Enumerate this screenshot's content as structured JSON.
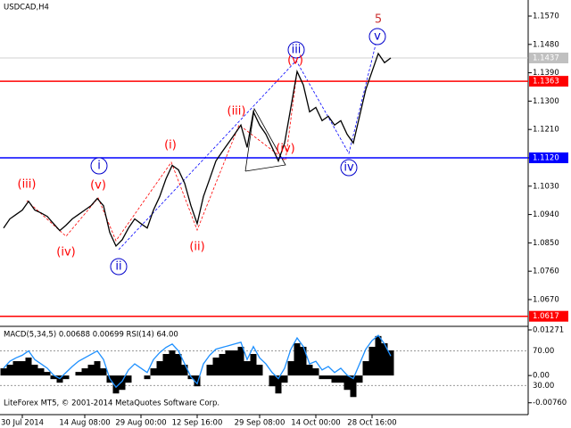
{
  "chart_data": [
    {
      "type": "line",
      "title": "USDCAD,H4",
      "footer": "LiteForex MT5, © 2001-2014 MetaQuotes Software Corp.",
      "categories": [
        null,
        null,
        null,
        "30 Jul 2014",
        null,
        null,
        null,
        null,
        null,
        null,
        null,
        null,
        null,
        "14 Aug 08:00",
        null,
        null,
        null,
        null,
        null,
        null,
        null,
        null,
        "29 Aug 00:00",
        null,
        null,
        null,
        null,
        null,
        null,
        null,
        null,
        "12 Sep 16:00",
        null,
        null,
        null,
        null,
        null,
        null,
        null,
        null,
        null,
        "29 Sep 08:00",
        null,
        null,
        null,
        null,
        null,
        null,
        null,
        null,
        "14 Oct 00:00",
        null,
        null,
        null,
        null,
        null,
        null,
        null,
        null,
        "28 Oct 16:00",
        null,
        null,
        null
      ],
      "series": [
        {
          "color": "#000000",
          "values": [
            1.0897,
            1.0926,
            1.094,
            1.0954,
            1.0982,
            1.0954,
            1.0945,
            1.0934,
            1.0911,
            1.0889,
            1.0906,
            1.0926,
            1.094,
            1.0954,
            1.0968,
            1.0991,
            1.0968,
            1.0883,
            1.084,
            1.086,
            1.0897,
            1.0926,
            1.0911,
            1.0897,
            1.0954,
            1.0997,
            1.1053,
            1.1096,
            1.1082,
            1.1039,
            1.0968,
            1.0911,
            1.0997,
            1.1053,
            1.111,
            1.1139,
            1.1167,
            1.1195,
            1.1224,
            1.1153,
            1.1266,
            1.1224,
            1.1195,
            1.1153,
            1.111,
            1.1167,
            1.128,
            1.1394,
            1.1351,
            1.1266,
            1.128,
            1.1238,
            1.1252,
            1.1224,
            1.1238,
            1.1195,
            1.1167,
            1.1252,
            1.1337,
            1.1394,
            1.1451,
            1.1422,
            1.1437
          ]
        }
      ],
      "ylim": [
        1.0585,
        1.1621
      ],
      "yticks": [
        {
          "value": 1.157,
          "label": "1.1570"
        },
        {
          "value": 1.148,
          "label": "1.1480"
        },
        {
          "value": 1.139,
          "label": "1.1390"
        },
        {
          "value": 1.13,
          "label": "1.1300"
        },
        {
          "value": 1.121,
          "label": "1.1210"
        },
        {
          "value": 1.112,
          "label": "1.1120"
        },
        {
          "value": 1.103,
          "label": "1.1030"
        },
        {
          "value": 1.094,
          "label": "1.0940"
        },
        {
          "value": 1.085,
          "label": "1.0850"
        },
        {
          "value": 1.076,
          "label": "1.0760"
        },
        {
          "value": 1.067,
          "label": "1.0670"
        }
      ],
      "levels": [
        {
          "value": 1.1437,
          "color": "#c0c0c0"
        },
        {
          "value": 1.1363,
          "color": "#ff0000"
        },
        {
          "value": 1.112,
          "label": "1.1120",
          "color": "#0000ff"
        },
        {
          "value": 1.0617,
          "color": "#ff0000"
        }
      ],
      "annotations": [
        {
          "text": "5",
          "color": "#cc3333"
        },
        {
          "text": "v",
          "color": "#0000cc"
        },
        {
          "text": "iii",
          "color": "#0000cc"
        },
        {
          "text": "(v)",
          "color": "#ff0000"
        },
        {
          "text": "(iii)",
          "color": "#ff0000"
        },
        {
          "text": "(iv)",
          "color": "#ff0000"
        },
        {
          "text": "iv",
          "color": "#0000cc"
        },
        {
          "text": "(i)",
          "color": "#ff0000"
        },
        {
          "text": "i",
          "color": "#0000cc"
        },
        {
          "text": "(v)",
          "color": "#ff0000"
        },
        {
          "text": "(iii)",
          "color": "#ff0000"
        },
        {
          "text": "(iv)",
          "color": "#ff0000"
        },
        {
          "text": "ii",
          "color": "#0000cc"
        },
        {
          "text": "(ii)",
          "color": "#ff0000"
        }
      ]
    },
    {
      "type": "bar",
      "title": "MACD(5,34,5) 0.00688 0.00699 RSI(14) 64.00",
      "series": [
        {
          "color": "#000000",
          "values": [
            0.002,
            0.003,
            0.004,
            0.004,
            0.005,
            0.003,
            0.002,
            0.001,
            -0.001,
            -0.002,
            -0.001,
            0.0,
            0.001,
            0.002,
            0.003,
            0.004,
            0.002,
            -0.002,
            -0.005,
            -0.004,
            -0.002,
            0.0,
            0.0,
            -0.001,
            0.002,
            0.004,
            0.006,
            0.007,
            0.006,
            0.003,
            -0.001,
            -0.003,
            0.0,
            0.003,
            0.005,
            0.006,
            0.007,
            0.007,
            0.008,
            0.004,
            0.006,
            0.003,
            0.0,
            -0.003,
            -0.005,
            -0.002,
            0.004,
            0.009,
            0.008,
            0.003,
            0.002,
            -0.001,
            -0.001,
            -0.002,
            -0.002,
            -0.004,
            -0.006,
            -0.002,
            0.004,
            0.008,
            0.011,
            0.009,
            0.007
          ]
        },
        {
          "color": "#1e90ff",
          "axis": "y2",
          "values": [
            50,
            58,
            62,
            65,
            70,
            60,
            55,
            50,
            42,
            38,
            45,
            52,
            58,
            62,
            66,
            70,
            60,
            38,
            28,
            35,
            48,
            55,
            50,
            45,
            60,
            68,
            74,
            78,
            70,
            55,
            40,
            32,
            55,
            65,
            72,
            74,
            76,
            78,
            80,
            60,
            75,
            62,
            55,
            45,
            38,
            50,
            72,
            85,
            75,
            55,
            58,
            48,
            52,
            45,
            50,
            42,
            38,
            55,
            72,
            82,
            88,
            78,
            64
          ]
        }
      ],
      "ylim": [
        -0.0109,
        0.0137
      ],
      "yticks": [
        0.01271,
        {
          "value": 0,
          "label": "0.00"
        },
        {
          "value": -0.0076,
          "label": "-0.00760"
        }
      ],
      "y2lim": [
        -3.7,
        98.4
      ],
      "y2ticks": [
        {
          "value": 70,
          "label": "70.00"
        },
        {
          "value": 30,
          "label": "30.00"
        }
      ]
    }
  ]
}
